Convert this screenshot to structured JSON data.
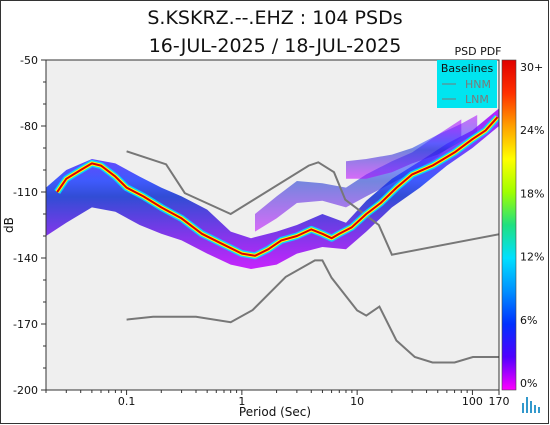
{
  "chart_data": {
    "type": "heatmap",
    "title_line1": "S.KSKRZ.--.EHZ : 104 PSDs",
    "title_line2": "16-JUL-2025 / 18-JUL-2025",
    "xlabel": "Period (Sec)",
    "ylabel": "dB",
    "x_scale": "log",
    "xlim": [
      0.02,
      170
    ],
    "ylim": [
      -200,
      -50
    ],
    "x_ticks": [
      0.1,
      1,
      10,
      100,
      170
    ],
    "x_tick_labels": [
      "0.1",
      "1",
      "10",
      "100",
      "170"
    ],
    "y_ticks": [
      -50,
      -80,
      -110,
      -140,
      -170,
      -200
    ],
    "y_tick_labels": [
      "-50",
      "-80",
      "-110",
      "-140",
      "-170",
      "-200"
    ],
    "colorbar": {
      "title": "PSD PDF",
      "ticks": [
        "30+",
        "24%",
        "18%",
        "12%",
        "6%",
        "0%"
      ],
      "colors": [
        "#ff00ff",
        "#5000ff",
        "#0030ff",
        "#0090ff",
        "#00e0ff",
        "#20e080",
        "#a0ff00",
        "#ffff00",
        "#ffa000",
        "#ff3000",
        "#e00000"
      ]
    },
    "legend": {
      "title": "Baselines",
      "entries": [
        "HNM",
        "LNM"
      ],
      "placement": "top-right",
      "background": "#00e5f0"
    },
    "background_color": "#efefef",
    "series": [
      {
        "name": "HNM",
        "color": "#777777",
        "x": [
          0.1,
          0.22,
          0.32,
          0.8,
          3.8,
          4.6,
          6.3,
          7.9,
          15.4,
          20,
          354.8
        ],
        "y": [
          -91.5,
          -97.4,
          -110.5,
          -120,
          -98,
          -96.5,
          -101,
          -113.5,
          -125,
          -138.5,
          -126
        ]
      },
      {
        "name": "LNM",
        "color": "#777777",
        "x": [
          0.1,
          0.17,
          0.4,
          0.8,
          1.24,
          2.4,
          4.3,
          5,
          6,
          10,
          12,
          15.6,
          21.9,
          31.6,
          45,
          70,
          101,
          154,
          328
        ],
        "y": [
          -168,
          -166.7,
          -166.7,
          -169.2,
          -163.7,
          -148.6,
          -141.1,
          -141.1,
          -149,
          -163.8,
          -166.2,
          -162.1,
          -177.5,
          -185,
          -187.5,
          -187.5,
          -185,
          -185,
          -185
        ]
      },
      {
        "name": "mode",
        "color": "#e00000",
        "x": [
          0.025,
          0.03,
          0.04,
          0.05,
          0.06,
          0.08,
          0.1,
          0.14,
          0.2,
          0.3,
          0.45,
          0.7,
          1.0,
          1.3,
          1.7,
          2.2,
          3.0,
          4.0,
          5.0,
          6.0,
          7.0,
          9.0,
          12,
          16,
          22,
          30,
          45,
          70,
          100,
          130,
          165
        ],
        "y": [
          -110,
          -104,
          -100,
          -97,
          -98,
          -103,
          -108,
          -112,
          -117,
          -122,
          -129,
          -134,
          -138,
          -139,
          -136,
          -132,
          -130,
          -127,
          -129,
          -131,
          -129,
          -126,
          -120,
          -115,
          -108,
          -102,
          -98,
          -92,
          -86,
          -82,
          -76
        ]
      }
    ],
    "density_bands": [
      {
        "x": [
          0.02,
          0.03,
          0.05,
          0.08,
          0.13,
          0.2,
          0.3,
          0.5,
          0.8,
          1.2,
          2,
          3,
          5,
          8,
          12,
          20,
          35,
          60,
          100,
          170
        ],
        "y_hi": [
          -108,
          -100,
          -95,
          -97,
          -103,
          -108,
          -112,
          -118,
          -128,
          -131,
          -128,
          -125,
          -120,
          -124,
          -114,
          -104,
          -96,
          -88,
          -82,
          -72
        ],
        "y_lo": [
          -130,
          -124,
          -117,
          -119,
          -125,
          -129,
          -132,
          -138,
          -143,
          -145,
          -143,
          -138,
          -135,
          -136,
          -128,
          -117,
          -108,
          -98,
          -90,
          -80
        ]
      },
      {
        "x": [
          1.3,
          2,
          3,
          5,
          8,
          12,
          20,
          30,
          50,
          80
        ],
        "y_hi": [
          -120,
          -112,
          -105,
          -106,
          -108,
          -102,
          -96,
          -92,
          -84,
          -77
        ],
        "y_lo": [
          -128,
          -122,
          -115,
          -114,
          -117,
          -112,
          -106,
          -101,
          -94,
          -85
        ]
      },
      {
        "x": [
          8,
          12,
          20,
          30,
          50,
          80,
          110
        ],
        "y_hi": [
          -96,
          -95,
          -93,
          -90,
          -84,
          -79,
          -75
        ],
        "y_lo": [
          -104,
          -104,
          -101,
          -97,
          -93,
          -87,
          -83
        ]
      }
    ]
  }
}
